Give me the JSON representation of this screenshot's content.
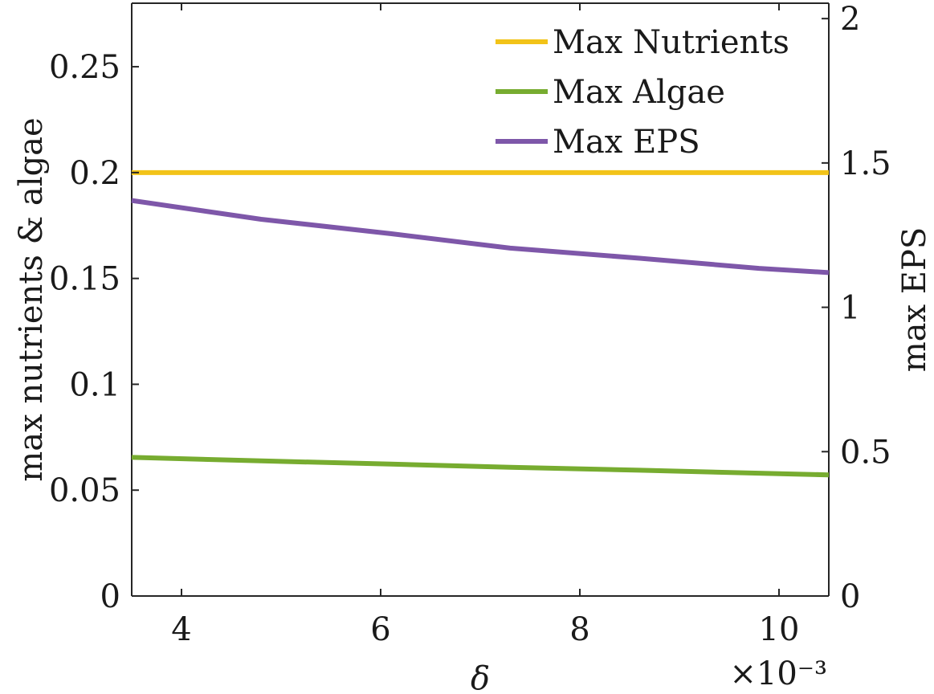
{
  "chart_data": {
    "type": "line",
    "xlabel": "δ",
    "x_multiplier_label": "×10⁻³",
    "ylabel_left": "max nutrients & algae",
    "ylabel_right": "max EPS",
    "xlim": [
      3.5,
      10.5
    ],
    "ylim_left": [
      0,
      0.28
    ],
    "ylim_right": [
      0,
      2.0533
    ],
    "xticks": [
      4,
      6,
      8,
      10
    ],
    "xtick_labels": [
      "4",
      "6",
      "8",
      "10"
    ],
    "yticks_left": [
      0,
      0.05,
      0.1,
      0.15,
      0.2,
      0.25
    ],
    "ytick_labels_left": [
      "0",
      "0.05",
      "0.1",
      "0.15",
      "0.2",
      "0.25"
    ],
    "yticks_right": [
      0,
      0.5,
      1,
      1.5,
      2
    ],
    "ytick_labels_right": [
      "0",
      "0.5",
      "1",
      "1.5",
      "2"
    ],
    "grid": false,
    "legend_position": "top-right",
    "series": [
      {
        "name": "Max Nutrients",
        "axis": "left",
        "color": "#f2c318",
        "x": [
          3.5,
          10.5
        ],
        "y": [
          0.2,
          0.2
        ]
      },
      {
        "name": "Max Algae",
        "axis": "left",
        "color": "#77ac30",
        "x": [
          3.5,
          4.8,
          6.1,
          7.3,
          8.6,
          9.8,
          10.5
        ],
        "y": [
          0.0655,
          0.0638,
          0.0623,
          0.0608,
          0.0594,
          0.058,
          0.0572
        ]
      },
      {
        "name": "Max EPS",
        "axis": "right",
        "color": "#7e57a9",
        "x": [
          3.5,
          4.8,
          6.1,
          7.3,
          8.6,
          9.8,
          10.5
        ],
        "y": [
          1.37,
          1.305,
          1.255,
          1.205,
          1.17,
          1.135,
          1.12
        ]
      }
    ]
  }
}
